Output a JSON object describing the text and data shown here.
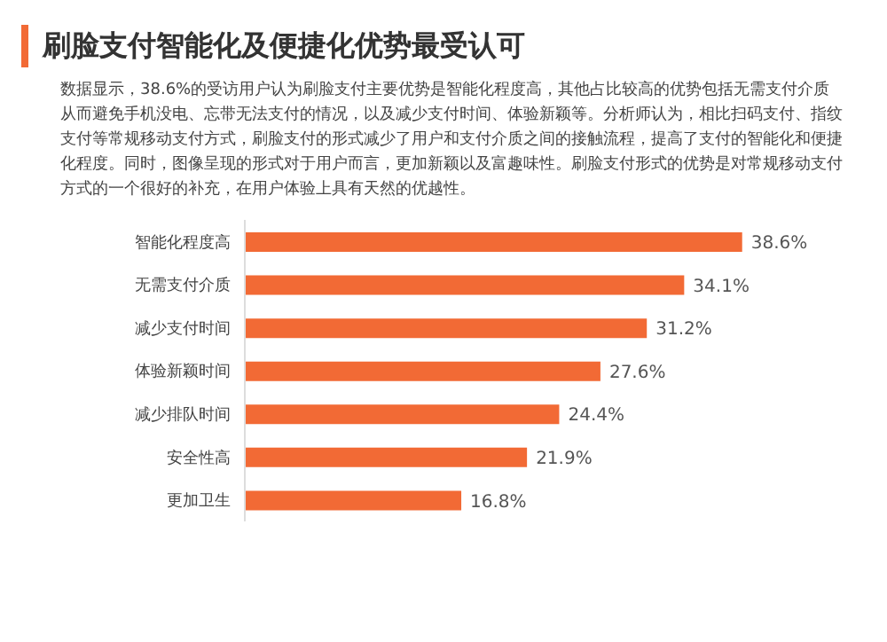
{
  "chart_data": {
    "type": "bar",
    "orientation": "horizontal",
    "title": "刷脸支付智能化及便捷化优势最受认可",
    "annotations": [
      "数据显示，38.6%的受访用户认为刷脸支付主要优势是智能化程度高，其他占比较高的优势包括无需支付介质从而避免手机没电、忘带无法支付的情况，以及减少支付时间、体验新颖等。分析师认为，相比扫码支付、指纹支付等常规移动支付方式，刷脸支付的形式减少了用户和支付介质之间的接触流程，提高了支付的智能化和便捷化程度。同时，图像呈现的形式对于用户而言，更加新颖以及富趣味性。刷脸支付形式的优势是对常规移动支付方式的一个很好的补充，在用户体验上具有天然的优越性。"
    ],
    "categories": [
      "智能化程度高",
      "无需支付介质",
      "减少支付时间",
      "体验新颖时间",
      "减少排队时间",
      "安全性高",
      "更加卫生"
    ],
    "values": [
      38.6,
      34.1,
      31.2,
      27.6,
      24.4,
      21.9,
      16.8
    ],
    "value_labels": [
      "38.6%",
      "34.1%",
      "31.2%",
      "27.6%",
      "24.4%",
      "21.9%",
      "16.8%"
    ],
    "color": "#f26a35",
    "grid": false
  }
}
